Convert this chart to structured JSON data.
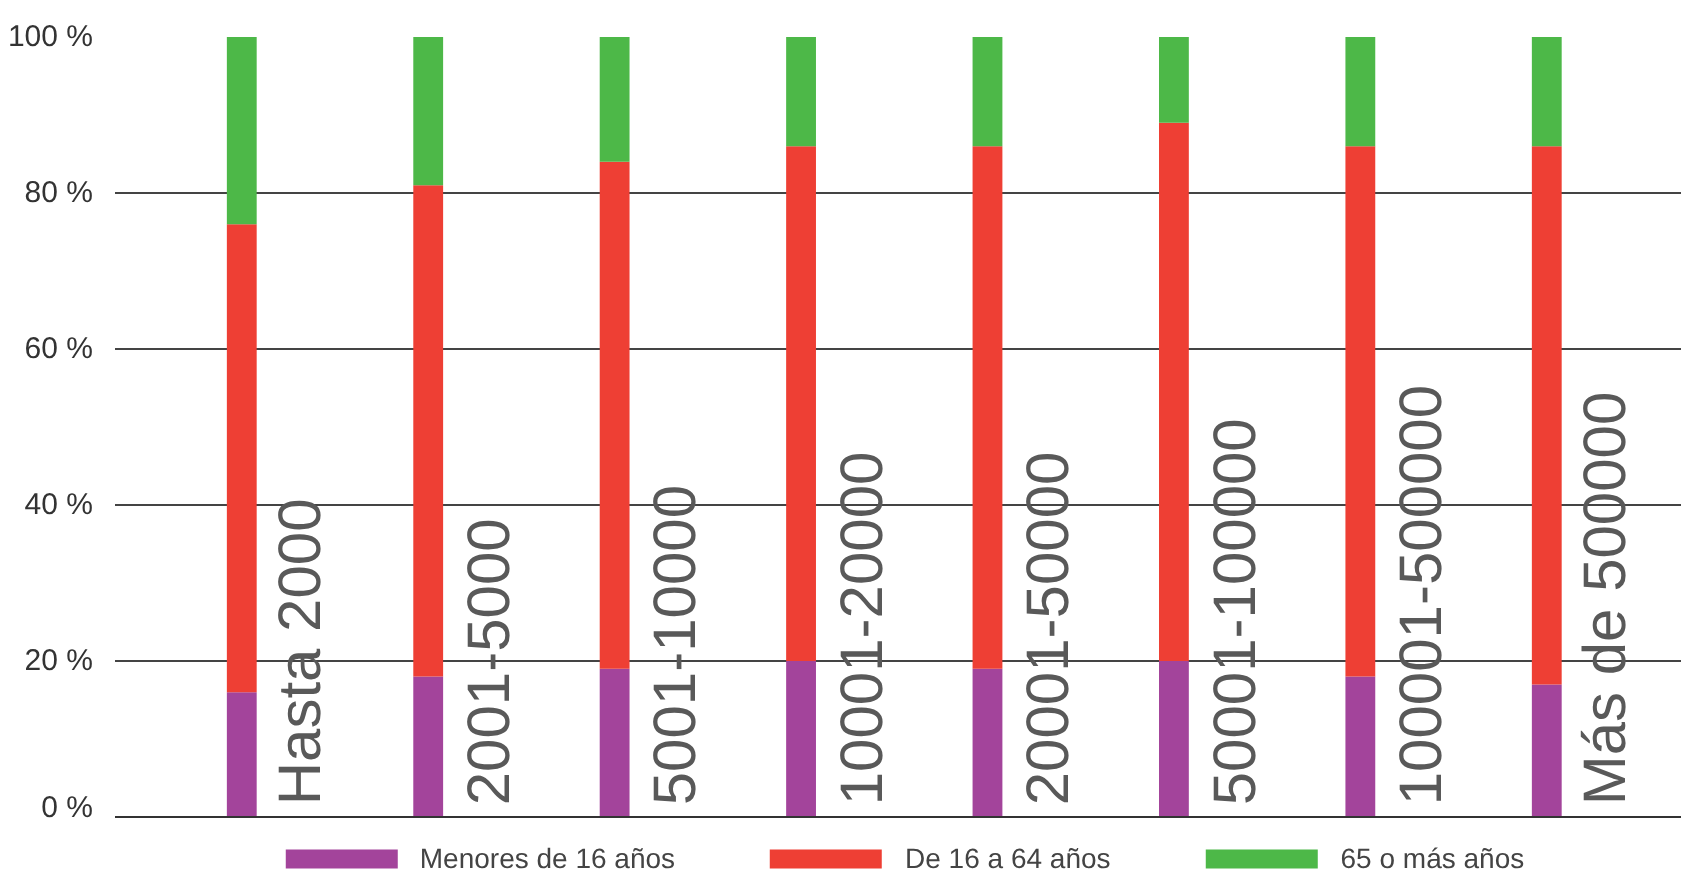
{
  "chart_data": {
    "type": "bar",
    "stacked": true,
    "categories": [
      "Hasta 2000",
      "2001-5000",
      "5001-10000",
      "10001-20000",
      "20001-50000",
      "50001-100000",
      "100001-500000",
      "Más de 500000"
    ],
    "series": [
      {
        "name": "Menores de 16 años",
        "color": "#a3449b",
        "values": [
          16,
          18,
          19,
          20,
          19,
          20,
          18,
          17
        ]
      },
      {
        "name": "De 16 a 64 años",
        "color": "#ee3f34",
        "values": [
          60,
          63,
          65,
          66,
          67,
          69,
          68,
          69
        ]
      },
      {
        "name": "65 o más años",
        "color": "#4db848",
        "values": [
          24,
          19,
          16,
          14,
          14,
          11,
          14,
          14
        ]
      }
    ],
    "ylim": [
      0,
      100
    ],
    "yticks": [
      {
        "value": 0,
        "label": "0 %"
      },
      {
        "value": 20,
        "label": "20 %"
      },
      {
        "value": 40,
        "label": "40 %"
      },
      {
        "value": 60,
        "label": "60 %"
      },
      {
        "value": 80,
        "label": "80 %"
      },
      {
        "value": 100,
        "label": "100 %"
      }
    ],
    "grid": "y",
    "legend": "bottom"
  }
}
